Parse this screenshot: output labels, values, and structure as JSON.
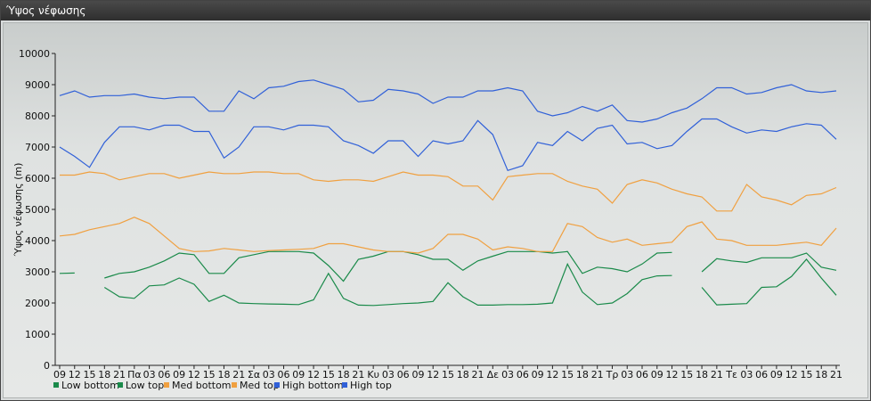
{
  "window": {
    "title": "Ύψος νέφωσης"
  },
  "chart_data": {
    "type": "line",
    "ylabel": "Ύψος νέφωσης (m)",
    "ylim": [
      0,
      10000
    ],
    "yticks": [
      0,
      1000,
      2000,
      3000,
      4000,
      5000,
      6000,
      7000,
      8000,
      9000,
      10000
    ],
    "grid": false,
    "legend_position": "bottom-left",
    "x_tick_labels": [
      "09",
      "12",
      "15",
      "18",
      "21",
      "Πα",
      "03",
      "06",
      "09",
      "12",
      "15",
      "18",
      "21",
      "Σα",
      "03",
      "06",
      "09",
      "12",
      "15",
      "18",
      "21",
      "Κυ",
      "03",
      "06",
      "09",
      "12",
      "15",
      "18",
      "21",
      "Δε",
      "03",
      "06",
      "09",
      "12",
      "15",
      "18",
      "21",
      "Τρ",
      "03",
      "06",
      "09",
      "12",
      "15",
      "18",
      "21",
      "Τε",
      "03",
      "06",
      "09",
      "12",
      "15",
      "18",
      "21"
    ],
    "series": [
      {
        "name": "Low bottom",
        "color": "#1a8a4a",
        "values": [
          null,
          null,
          null,
          2500,
          2200,
          2150,
          2550,
          2580,
          2800,
          2600,
          2050,
          2250,
          2000,
          1980,
          1970,
          1960,
          1950,
          2100,
          2950,
          2150,
          1930,
          1920,
          1950,
          1980,
          2000,
          2050,
          2650,
          2200,
          1930,
          1930,
          1950,
          1950,
          1960,
          2000,
          3250,
          2350,
          1950,
          2000,
          2300,
          2750,
          2870,
          2880,
          null,
          2500,
          1940,
          1960,
          1980,
          2500,
          2520,
          2850,
          3400,
          2800,
          2250
        ]
      },
      {
        "name": "Low top",
        "color": "#1a8a4a",
        "values": [
          2950,
          2960,
          null,
          2800,
          2950,
          3000,
          3150,
          3350,
          3600,
          3550,
          2950,
          2950,
          3450,
          3550,
          3650,
          3650,
          3650,
          3600,
          3200,
          2700,
          3400,
          3500,
          3650,
          3650,
          3550,
          3400,
          3400,
          3050,
          3350,
          3500,
          3650,
          3650,
          3650,
          3600,
          3650,
          2950,
          3150,
          3100,
          3000,
          3250,
          3600,
          3620,
          null,
          3000,
          3420,
          3350,
          3300,
          3450,
          3450,
          3450,
          3600,
          3150,
          3050
        ]
      },
      {
        "name": "Med bottom",
        "color": "#f0a040",
        "values": [
          4150,
          4200,
          4350,
          4450,
          4550,
          4750,
          4550,
          4150,
          3750,
          3650,
          3670,
          3750,
          3700,
          3650,
          3680,
          3700,
          3720,
          3750,
          3900,
          3900,
          3800,
          3700,
          3650,
          3650,
          3600,
          3750,
          4200,
          4200,
          4050,
          3700,
          3800,
          3750,
          3650,
          3650,
          4550,
          4450,
          4100,
          3950,
          4050,
          3850,
          3900,
          3950,
          4450,
          4600,
          4050,
          4000,
          3850,
          3850,
          3850,
          3900,
          3950,
          3850,
          4400
        ]
      },
      {
        "name": "Med top",
        "color": "#f0a040",
        "values": [
          6100,
          6100,
          6200,
          6150,
          5950,
          6050,
          6150,
          6150,
          6000,
          6100,
          6200,
          6150,
          6150,
          6200,
          6200,
          6150,
          6150,
          5950,
          5900,
          5950,
          5950,
          5900,
          6050,
          6200,
          6100,
          6100,
          6050,
          5750,
          5750,
          5300,
          6050,
          6100,
          6150,
          6150,
          5900,
          5750,
          5650,
          5200,
          5800,
          5950,
          5850,
          5650,
          5500,
          5400,
          4950,
          4950,
          5800,
          5400,
          5300,
          5150,
          5450,
          5500,
          5700
        ]
      },
      {
        "name": "High bottom",
        "color": "#3060d8",
        "values": [
          7000,
          6700,
          6350,
          7150,
          7650,
          7650,
          7550,
          7700,
          7700,
          7500,
          7500,
          6650,
          7000,
          7650,
          7650,
          7550,
          7700,
          7700,
          7650,
          7200,
          7050,
          6800,
          7200,
          7200,
          6700,
          7200,
          7100,
          7200,
          7850,
          7400,
          6250,
          6400,
          7150,
          7050,
          7500,
          7200,
          7600,
          7700,
          7100,
          7150,
          6950,
          7050,
          7500,
          7900,
          7900,
          7650,
          7450,
          7550,
          7500,
          7650,
          7750,
          7700,
          7250
        ]
      },
      {
        "name": "High top",
        "color": "#3060d8",
        "values": [
          8650,
          8800,
          8600,
          8650,
          8650,
          8700,
          8600,
          8550,
          8600,
          8600,
          8150,
          8150,
          8800,
          8550,
          8900,
          8950,
          9100,
          9150,
          9000,
          8850,
          8450,
          8500,
          8850,
          8800,
          8700,
          8400,
          8600,
          8600,
          8800,
          8800,
          8900,
          8800,
          8150,
          8000,
          8100,
          8300,
          8150,
          8350,
          7850,
          7800,
          7900,
          8100,
          8250,
          8550,
          8900,
          8900,
          8700,
          8750,
          8900,
          9000,
          8800,
          8750,
          8800
        ]
      }
    ]
  }
}
